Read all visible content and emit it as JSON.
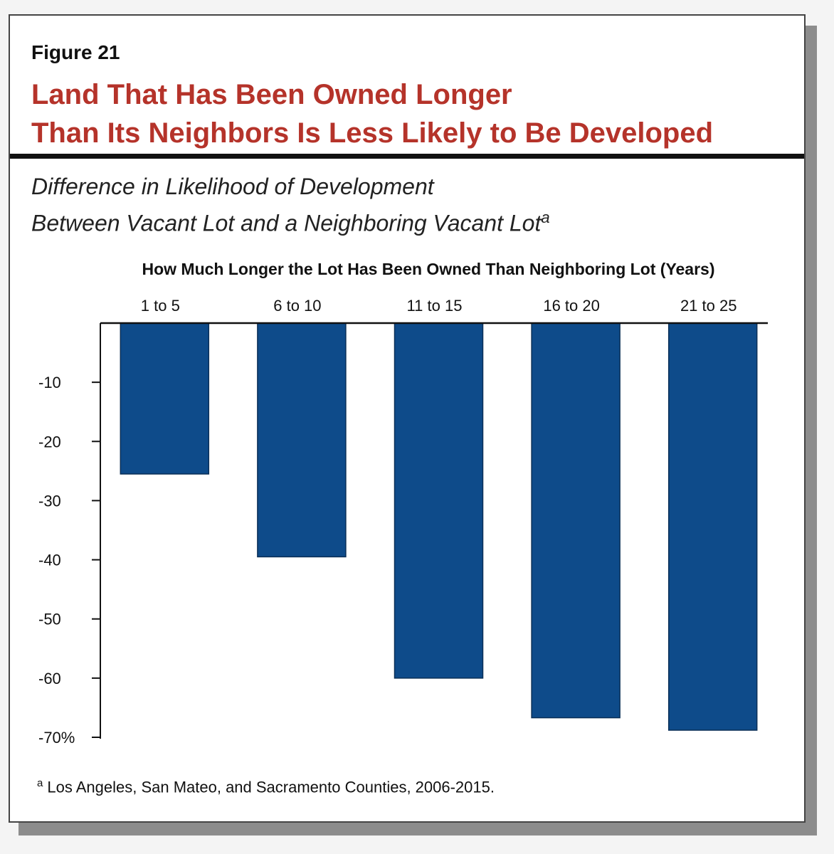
{
  "figure_label": "Figure 21",
  "title_line1": "Land That Has Been Owned Longer",
  "title_line2": "Than Its Neighbors Is Less Likely to Be Developed",
  "subtitle_line1": "Difference in Likelihood of Development",
  "subtitle_line2": "Between Vacant Lot and a Neighboring Vacant Lot",
  "subtitle_sup": "a",
  "footnote_marker": "a",
  "footnote_text": "Los Angeles, San Mateo, and Sacramento Counties, 2006-2015.",
  "colors": {
    "title": "#b5332a",
    "bar": "#0e4b8a"
  },
  "chart_data": {
    "type": "bar",
    "title": "",
    "xlabel": "How Much Longer the Lot Has Been Owned Than Neighboring Lot (Years)",
    "ylabel": "",
    "categories": [
      "1 to 5",
      "6 to 10",
      "11 to 15",
      "16 to 20",
      "21 to 25"
    ],
    "values": [
      -25.5,
      -39.5,
      -60,
      -66.7,
      -68.8
    ],
    "ylim": [
      -70,
      0
    ],
    "yticks": [
      -10,
      -20,
      -30,
      -40,
      -50,
      -60,
      -70
    ],
    "ytick_labels": [
      "-10",
      "-20",
      "-30",
      "-40",
      "-50",
      "-60",
      "-70%"
    ],
    "grid": false,
    "legend": "none"
  }
}
